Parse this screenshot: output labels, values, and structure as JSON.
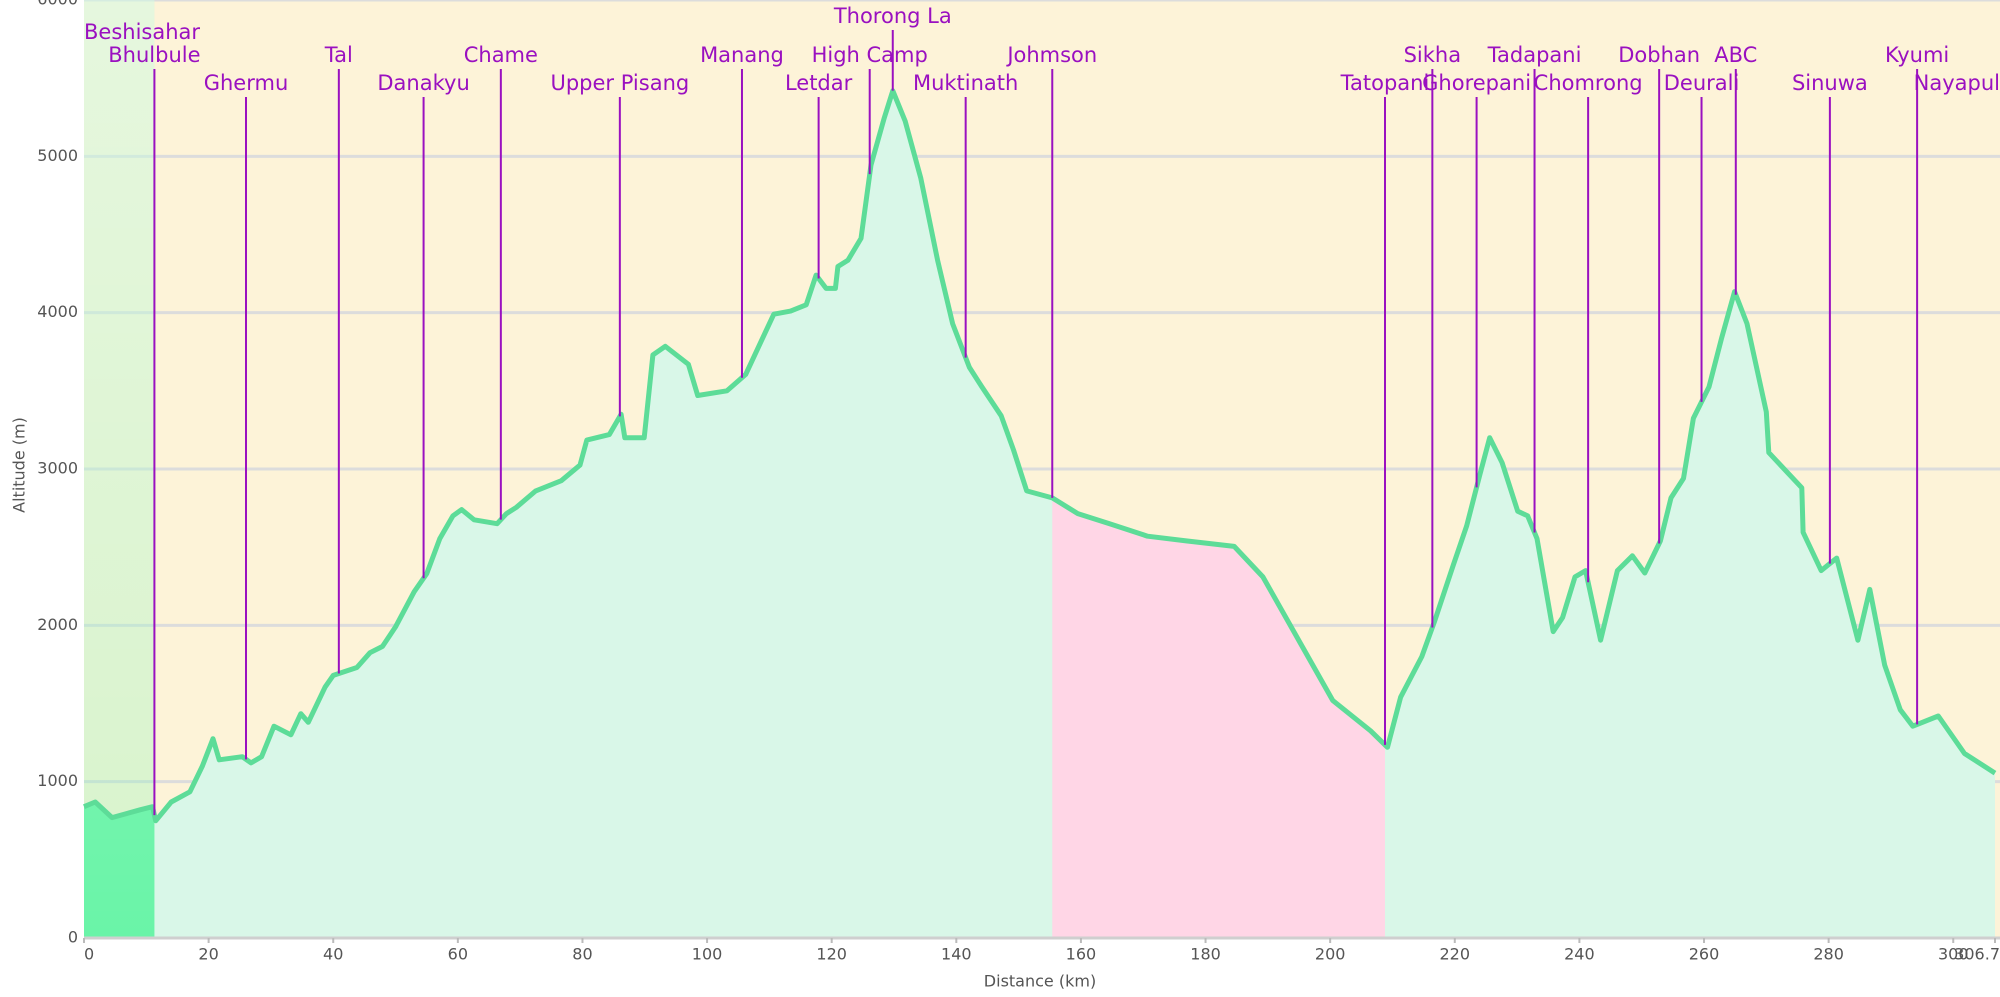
{
  "chart_data": {
    "type": "area",
    "x_label": "Distance   (km)",
    "y_label": "Altitude (m)",
    "xlim": [
      0,
      306.7
    ],
    "ylim": [
      0,
      6000
    ],
    "xticks": [
      0,
      20,
      40,
      60,
      80,
      100,
      120,
      140,
      160,
      180,
      200,
      220,
      240,
      260,
      280,
      300,
      306.7
    ],
    "yticks": [
      0,
      1000,
      2000,
      3000,
      4000,
      5000,
      6000
    ],
    "grid": true,
    "color": "#5ddc98",
    "fill_color": "#d9f7e8",
    "background": "#fdf3d8",
    "x": [
      0,
      1.8,
      4.5,
      9,
      11,
      11.5,
      14,
      17,
      19,
      20.7,
      21.7,
      25.4,
      26.8,
      28.5,
      30.5,
      33.2,
      34.8,
      36,
      38.7,
      40,
      43.8,
      45.9,
      47.9,
      50,
      53,
      55,
      57.1,
      59.2,
      60.6,
      62.6,
      66.3,
      67.8,
      69.4,
      72.5,
      76.6,
      79.6,
      80.7,
      84.3,
      86.2,
      86.8,
      89.9,
      91.3,
      93.3,
      97,
      98.5,
      103.2,
      106.2,
      108.3,
      110.7,
      113.4,
      115.9,
      117.5,
      119.1,
      120.6,
      121,
      122.6,
      124.7,
      126.3,
      128.4,
      129.8,
      131.8,
      134.3,
      137,
      139.4,
      142.1,
      144.1,
      147.2,
      149.2,
      151.3,
      155.4,
      159.5,
      164.6,
      170.7,
      176.9,
      184.6,
      189.2,
      195.3,
      200.4,
      206.5,
      209.2,
      211.3,
      214.7,
      216.8,
      219.8,
      221.9,
      224,
      225.6,
      227.6,
      230.1,
      231.7,
      233.2,
      235.8,
      237.3,
      239.3,
      241,
      243.4,
      246.1,
      248.5,
      250.5,
      253,
      254.7,
      256.7,
      258.3,
      260.8,
      262.8,
      264.9,
      266.9,
      270,
      270.4,
      275.7,
      275.9,
      278.8,
      281.3,
      284.7,
      286.6,
      289,
      291.5,
      293.5,
      297.6,
      301.8,
      306.7
    ],
    "values": [
      840,
      870,
      770,
      820,
      840,
      750,
      870,
      935,
      1100,
      1275,
      1140,
      1160,
      1120,
      1160,
      1355,
      1300,
      1435,
      1380,
      1605,
      1680,
      1730,
      1825,
      1865,
      1990,
      2215,
      2330,
      2555,
      2700,
      2740,
      2675,
      2650,
      2715,
      2755,
      2860,
      2925,
      3025,
      3185,
      3220,
      3350,
      3200,
      3200,
      3730,
      3785,
      3670,
      3470,
      3500,
      3605,
      3785,
      3990,
      4010,
      4050,
      4240,
      4155,
      4155,
      4295,
      4335,
      4475,
      4945,
      5240,
      5420,
      5225,
      4860,
      4335,
      3930,
      3650,
      3525,
      3340,
      3120,
      2860,
      2815,
      2715,
      2650,
      2570,
      2540,
      2505,
      2310,
      1880,
      1520,
      1325,
      1220,
      1540,
      1800,
      2030,
      2390,
      2635,
      2960,
      3200,
      3040,
      2730,
      2700,
      2555,
      1960,
      2050,
      2310,
      2350,
      1905,
      2350,
      2445,
      2335,
      2540,
      2815,
      2940,
      3325,
      3525,
      3835,
      4135,
      3930,
      3365,
      3105,
      2880,
      2595,
      2350,
      2430,
      1905,
      2230,
      1745,
      1460,
      1355,
      1420,
      1180,
      1055
    ],
    "bands": [
      {
        "from": 0,
        "to": 11.3,
        "color": "#6af5a8"
      },
      {
        "from": 155.4,
        "to": 208.8,
        "color": "#ffd6e6"
      }
    ],
    "waypoints": [
      {
        "name": "Beshisahar",
        "km": 0
      },
      {
        "name": "Bhulbule",
        "km": 11.3
      },
      {
        "name": "Ghermu",
        "km": 26
      },
      {
        "name": "Tal",
        "km": 40.9
      },
      {
        "name": "Danakyu",
        "km": 54.5
      },
      {
        "name": "Chame",
        "km": 66.9
      },
      {
        "name": "Upper Pisang",
        "km": 86
      },
      {
        "name": "Manang",
        "km": 105.6
      },
      {
        "name": "Letdar",
        "km": 117.9
      },
      {
        "name": "High Camp",
        "km": 126.1
      },
      {
        "name": "Thorong La",
        "km": 129.8
      },
      {
        "name": "Muktinath",
        "km": 141.5
      },
      {
        "name": "Johmson",
        "km": 155.4
      },
      {
        "name": "Tatopani",
        "km": 208.8
      },
      {
        "name": "Sikha",
        "km": 216.4
      },
      {
        "name": "Ghorepani",
        "km": 223.5
      },
      {
        "name": "Tadapani",
        "km": 232.8
      },
      {
        "name": "Chomrong",
        "km": 241.4
      },
      {
        "name": "Dobhan",
        "km": 252.8
      },
      {
        "name": "Deurali",
        "km": 259.6
      },
      {
        "name": "ABC",
        "km": 265.1
      },
      {
        "name": "Sinuwa",
        "km": 280.2
      },
      {
        "name": "Kyumi",
        "km": 294.2
      },
      {
        "name": "Nayapul",
        "km": 306.7
      }
    ]
  }
}
